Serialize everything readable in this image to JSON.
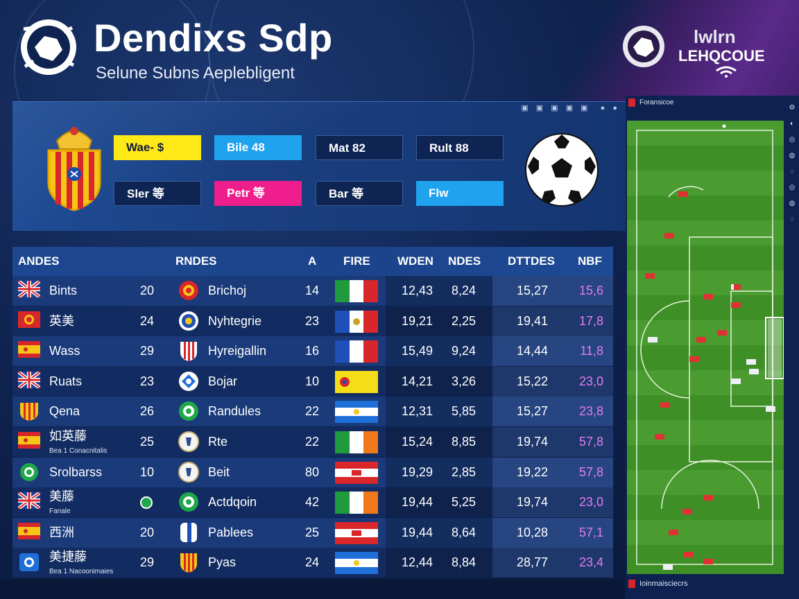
{
  "header": {
    "title": "Dendixs Sdp",
    "subtitle": "Selune Subns Aeplebligent",
    "league_line1": "lwlrn",
    "league_line2": "LEHQCOUE"
  },
  "colors": {
    "yellow": "#ffe817",
    "cyan": "#1fa3ee",
    "pink": "#ee1f8c",
    "navy_box": "#0e2452",
    "pitch_green": "#3f8f27",
    "accent_purple": "#d86ef0"
  },
  "stat_boxes": [
    {
      "label": "Wae- $",
      "style": "yellow"
    },
    {
      "label": "Bile 48",
      "style": "cyan"
    },
    {
      "label": "Mat 82",
      "style": "navy"
    },
    {
      "label": "Rult 88",
      "style": "navy"
    },
    {
      "label": "Sler 等",
      "style": "navy"
    },
    {
      "label": "Petr 等",
      "style": "pink"
    },
    {
      "label": "Bar 等",
      "style": "navy"
    },
    {
      "label": "Flw",
      "style": "cyan"
    }
  ],
  "table": {
    "headers": [
      "ANDES",
      "RNDES",
      "A",
      "FIRE",
      "WDEN",
      "NDES",
      "DTTDES",
      "NBF"
    ],
    "rows": [
      {
        "flag_icon": "uk-flag-icon",
        "name": "Bints",
        "sub": "",
        "age": "20",
        "badge_icon": "red-club-badge-icon",
        "club": "Brichoj",
        "num": "14",
        "nation_flag": "italy-flag-icon",
        "wden": "12,43",
        "ndes": "8,24",
        "dttdes": "15,27",
        "nbf": "15,6"
      },
      {
        "flag_icon": "red-circle-icon",
        "name": "英美",
        "sub": "",
        "age": "24",
        "badge_icon": "blue-club-badge-icon",
        "club": "Nyhtegrie",
        "num": "23",
        "nation_flag": "france-crest-flag-icon",
        "wden": "19,21",
        "ndes": "2,25",
        "dttdes": "19,41",
        "nbf": "17,8"
      },
      {
        "flag_icon": "spain-flag-icon",
        "name": "Wass",
        "sub": "",
        "age": "29",
        "badge_icon": "red-stripes-badge-icon",
        "club": "Hyreigallin",
        "num": "16",
        "nation_flag": "france-flag-icon",
        "wden": "15,49",
        "ndes": "9,24",
        "dttdes": "14,44",
        "nbf": "11,8"
      },
      {
        "flag_icon": "uk-flag-icon",
        "name": "Ruats",
        "sub": "",
        "age": "23",
        "badge_icon": "blue-wing-badge-icon",
        "club": "Bojar",
        "num": "10",
        "nation_flag": "yellow-crest-flag-icon",
        "wden": "14,21",
        "ndes": "3,26",
        "dttdes": "15,22",
        "nbf": "23,0"
      },
      {
        "flag_icon": "shield-stripes-icon",
        "name": "Qena",
        "sub": "",
        "age": "26",
        "badge_icon": "green-club-badge-icon",
        "club": "Randules",
        "num": "22",
        "nation_flag": "argentina-flag-icon",
        "wden": "12,31",
        "ndes": "5,85",
        "dttdes": "15,27",
        "nbf": "23,8"
      },
      {
        "flag_icon": "spain-flag-icon",
        "name": "如英藤",
        "sub": "Bea 1 Conacnitalis",
        "age": "25",
        "badge_icon": "white-club-badge-icon",
        "club": "Rte",
        "num": "22",
        "nation_flag": "ireland-flag-icon",
        "wden": "15,24",
        "ndes": "8,85",
        "dttdes": "19,74",
        "nbf": "57,8"
      },
      {
        "flag_icon": "green-circle-icon",
        "name": "Srolbarss",
        "sub": "",
        "age": "10",
        "badge_icon": "white-club-badge-icon",
        "club": "Beit",
        "num": "80",
        "nation_flag": "red-white-crest-flag-icon",
        "wden": "19,29",
        "ndes": "2,85",
        "dttdes": "19,22",
        "nbf": "57,8"
      },
      {
        "flag_icon": "uk-flag-icon",
        "name": "美藤",
        "sub": "Fanale",
        "age": "",
        "badge_icon": "green-club-badge-icon",
        "club": "Actdqoin",
        "num": "42",
        "nation_flag": "ireland-flag-icon",
        "wden": "19,44",
        "ndes": "5,25",
        "dttdes": "19,74",
        "nbf": "23,0"
      },
      {
        "flag_icon": "spain-flag-icon",
        "name": "西洲",
        "sub": "",
        "age": "20",
        "badge_icon": "blue-white-badge-icon",
        "club": "Pablees",
        "num": "25",
        "nation_flag": "red-white-crest-flag-icon",
        "wden": "19,44",
        "ndes": "8,64",
        "dttdes": "10,28",
        "nbf": "57,1"
      },
      {
        "flag_icon": "blue-shield-icon",
        "name": "美捷藤",
        "sub": "Bea 1 Nacoonimaies",
        "age": "29",
        "badge_icon": "yellow-stripes-badge-icon",
        "club": "Pyas",
        "num": "24",
        "nation_flag": "argentina-flag-icon",
        "wden": "12,44",
        "ndes": "8,84",
        "dttdes": "28,77",
        "nbf": "23,4"
      }
    ]
  },
  "pitch": {
    "header_text": "Foransicoe",
    "footer_text": "Ioinmaisciecrs"
  }
}
